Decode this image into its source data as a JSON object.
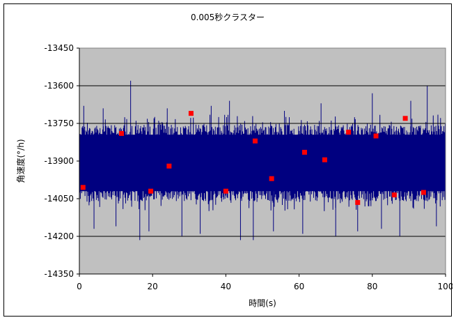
{
  "chart_data": {
    "type": "line",
    "title": "0.005秒クラスター",
    "xlabel": "時間(s)",
    "ylabel": "角速度(°/h)",
    "xlim": [
      0,
      100
    ],
    "ylim": [
      -14350,
      -13450
    ],
    "xticks": [
      0,
      20,
      40,
      60,
      80,
      100
    ],
    "yticks": [
      -13450,
      -13600,
      -13750,
      -13900,
      -14050,
      -14200,
      -14350
    ],
    "ytick_labels": [
      "-13450",
      "-13600",
      "-13750",
      "-13900",
      "-14050",
      "-14200",
      "-14350"
    ],
    "grid": {
      "horizontal_lines": [
        -13600,
        -13750,
        -14200
      ]
    },
    "plot_background": "#c0c0c0",
    "series": [
      {
        "style": "line",
        "color": "#000080",
        "center": -13915,
        "band_low": -14060,
        "band_high": -13755,
        "spikes": [
          {
            "x": 1.2,
            "y": -13680
          },
          {
            "x": 4.0,
            "y": -14170
          },
          {
            "x": 6.5,
            "y": -13690
          },
          {
            "x": 10.0,
            "y": -14160
          },
          {
            "x": 14.0,
            "y": -13580
          },
          {
            "x": 16.5,
            "y": -14215
          },
          {
            "x": 19.0,
            "y": -14180
          },
          {
            "x": 24.0,
            "y": -13690
          },
          {
            "x": 28.0,
            "y": -14200
          },
          {
            "x": 33.0,
            "y": -14190
          },
          {
            "x": 36.0,
            "y": -13680
          },
          {
            "x": 41.0,
            "y": -13660
          },
          {
            "x": 44.0,
            "y": -14215
          },
          {
            "x": 47.5,
            "y": -14215
          },
          {
            "x": 53.0,
            "y": -14180
          },
          {
            "x": 56.0,
            "y": -13700
          },
          {
            "x": 61.0,
            "y": -14190
          },
          {
            "x": 66.0,
            "y": -13670
          },
          {
            "x": 70.0,
            "y": -14200
          },
          {
            "x": 76.0,
            "y": -14180
          },
          {
            "x": 80.0,
            "y": -13630
          },
          {
            "x": 82.5,
            "y": -14170
          },
          {
            "x": 87.5,
            "y": -14200
          },
          {
            "x": 90.5,
            "y": -13660
          },
          {
            "x": 95.0,
            "y": -13600
          },
          {
            "x": 97.5,
            "y": -14160
          }
        ]
      },
      {
        "style": "scatter",
        "color": "#ff0000",
        "points": [
          {
            "x": 1.0,
            "y": -14005
          },
          {
            "x": 11.5,
            "y": -13790
          },
          {
            "x": 19.5,
            "y": -14020
          },
          {
            "x": 24.5,
            "y": -13920
          },
          {
            "x": 30.5,
            "y": -13710
          },
          {
            "x": 40.0,
            "y": -14020
          },
          {
            "x": 48.0,
            "y": -13820
          },
          {
            "x": 52.5,
            "y": -13970
          },
          {
            "x": 61.5,
            "y": -13865
          },
          {
            "x": 67.0,
            "y": -13895
          },
          {
            "x": 73.5,
            "y": -13785
          },
          {
            "x": 76.0,
            "y": -14065
          },
          {
            "x": 81.0,
            "y": -13800
          },
          {
            "x": 86.0,
            "y": -14035
          },
          {
            "x": 89.0,
            "y": -13730
          },
          {
            "x": 94.0,
            "y": -14025
          }
        ]
      }
    ]
  }
}
